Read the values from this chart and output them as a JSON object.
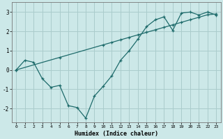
{
  "xlabel": "Humidex (Indice chaleur)",
  "background_color": "#cce8e8",
  "line_color": "#1e6b6b",
  "grid_color": "#aacccc",
  "xlim": [
    -0.5,
    23.5
  ],
  "ylim": [
    -2.7,
    3.5
  ],
  "xticks": [
    0,
    1,
    2,
    3,
    4,
    5,
    6,
    7,
    8,
    9,
    10,
    11,
    12,
    13,
    14,
    15,
    16,
    17,
    18,
    19,
    20,
    21,
    22,
    23
  ],
  "yticks": [
    -2,
    -1,
    0,
    1,
    2,
    3
  ],
  "line1_x": [
    0,
    1,
    2,
    3,
    4,
    5,
    6,
    7,
    8,
    9,
    10,
    11,
    12,
    13,
    14,
    15,
    16,
    17,
    18,
    19,
    20,
    21,
    22,
    23
  ],
  "line1_y": [
    0.0,
    0.5,
    0.4,
    -0.45,
    -0.9,
    -0.8,
    -1.85,
    -1.95,
    -2.5,
    -1.35,
    -0.85,
    -0.3,
    0.5,
    1.0,
    1.6,
    2.25,
    2.6,
    2.75,
    2.05,
    2.95,
    3.0,
    2.85,
    3.0,
    2.85
  ],
  "line2_x": [
    0,
    5,
    10,
    11,
    12,
    13,
    14,
    15,
    16,
    17,
    18,
    19,
    20,
    21,
    22,
    23
  ],
  "line2_y": [
    0.0,
    0.65,
    1.3,
    1.43,
    1.56,
    1.69,
    1.82,
    1.95,
    2.08,
    2.21,
    2.34,
    2.47,
    2.6,
    2.73,
    2.86,
    2.9
  ]
}
